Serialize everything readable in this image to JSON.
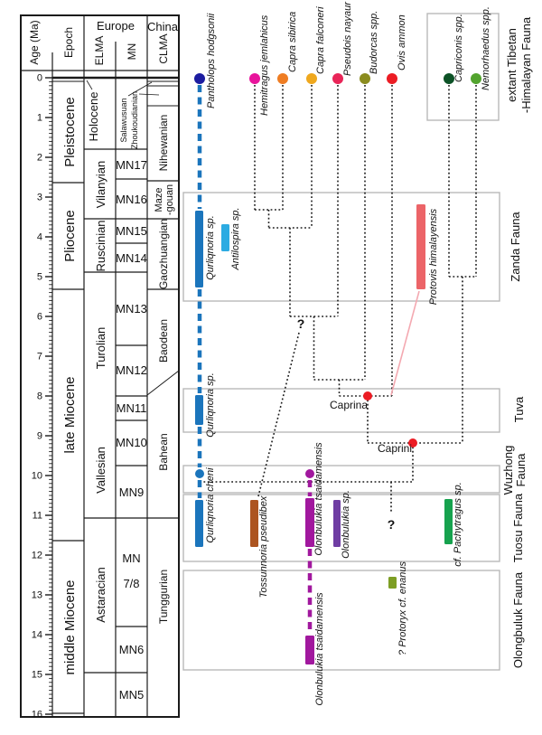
{
  "axis": {
    "label": "Age (Ma)",
    "tick_labels": [
      "0",
      "1",
      "2",
      "3",
      "4",
      "5",
      "6",
      "7",
      "8",
      "9",
      "10",
      "11",
      "12",
      "13",
      "14",
      "15",
      "16"
    ]
  },
  "header": {
    "epoch": "Epoch",
    "europe": "Europe",
    "china": "China",
    "elma": "ELMA",
    "mn": "MN",
    "clma": "CLMA"
  },
  "epochs": {
    "holocene": "Holocene",
    "pleistocene": "Pleistocene",
    "pliocene": "Pliocene",
    "late_miocene": "late Miocene",
    "middle_miocene": "middle Miocene"
  },
  "elma_stages": {
    "vilanyian": "Vilanyian",
    "ruscinian": "Ruscinian",
    "turolian": "Turolian",
    "vallesian": "Vallesian",
    "astaracian": "Astaracian"
  },
  "mn_zones": {
    "mn17": "MN17",
    "mn16": "MN16",
    "mn15": "MN15",
    "mn14": "MN14",
    "mn13": "MN13",
    "mn12": "MN12",
    "mn11": "MN11",
    "mn10": "MN10",
    "mn9": "MN9",
    "mn78_line1": "MN",
    "mn78_line2": "7/8",
    "mn6": "MN6",
    "mn5": "MN5"
  },
  "clma_stages": {
    "salawusuan": "Salawusuan",
    "zhoukoudianian": "Zhoukoudianian",
    "nihewanian": "Nihewanian",
    "mazegouan_line1": "Maze",
    "mazegouan_line2": "-gouan",
    "gaozhuangian": "Gaozhuangian",
    "baodean": "Baodean",
    "bahean": "Bahean",
    "tunggurian": "Tunggurian"
  },
  "extant_taxa": {
    "pantholops": {
      "label": "Pantholops hodgsonii",
      "color": "#1c1ca0"
    },
    "hemitragus": {
      "label": "Hemitragus jemlahicus",
      "color": "#e8149c"
    },
    "capra_sibirica": {
      "label": "Capra sibirica",
      "color": "#ef7d23"
    },
    "capra_falconeri": {
      "label": "Capra falconeri",
      "color": "#efa81e"
    },
    "pseudois": {
      "label": "Pseudois nayaur",
      "color": "#e92558"
    },
    "budorcas": {
      "label": "Budorcas spp.",
      "color": "#8b8c1f"
    },
    "ovis": {
      "label": "Ovis ammon",
      "color": "#ec1c24"
    },
    "capriconis": {
      "label": "Capriconis spp.",
      "color": "#0c5226"
    },
    "nemorhaedus": {
      "label": "Nemorhaedus spp.",
      "color": "#52a32e"
    }
  },
  "fossil_taxa": {
    "qurliqnoria_sp_zanda": {
      "label": "Qurliqnoria sp.",
      "color": "#1b75bc",
      "range_ma": [
        3.3,
        5.3
      ]
    },
    "antilospira": {
      "label": "Antilospira sp.",
      "color": "#2cabe2",
      "range_ma": [
        3.7,
        4.4
      ]
    },
    "protovis": {
      "label": "Protovis himalayensis",
      "color": "#ec6468",
      "range_ma": [
        3.2,
        5.3
      ]
    },
    "qurliqnoria_sp_tuva": {
      "label": "Qurliqnoria sp.",
      "color": "#1b75bc",
      "range_ma": [
        8.0,
        8.7
      ]
    },
    "qurliqnoria_cheni": {
      "label": "Qurliqnoria cheni",
      "color": "#1b75bc",
      "range_ma": [
        10.6,
        11.8
      ]
    },
    "tossunnoria": {
      "label": "Tossunnoria pseudibex",
      "color": "#ac5420",
      "range_ma": [
        10.6,
        11.8
      ]
    },
    "olonbulukia_tsaid_tuosu": {
      "label": "Olonbulukia tsaidamensis",
      "color": "#a1189e",
      "range_ma": [
        10.6,
        11.8
      ]
    },
    "olonbulukia_sp": {
      "label": "Olonbulukia sp.",
      "color": "#6f3da3",
      "range_ma": [
        10.6,
        11.8
      ]
    },
    "pachytragus": {
      "label": "cf. Pachytragus sp.",
      "color": "#16a24e",
      "range_ma": [
        10.6,
        11.7
      ]
    },
    "protoryx": {
      "label": "? Protoryx cf. enanus",
      "color": "#7d9e24",
      "range_ma": [
        12.5,
        12.8
      ]
    },
    "olonbulukia_tsaid_olong": {
      "label": "Olonbulukia tsaidamensis",
      "color": "#a1189e",
      "range_ma": [
        14.0,
        14.8
      ]
    }
  },
  "clade_labels": {
    "caprina": "Caprina",
    "caprini": "Caprini",
    "question1": "?",
    "question2": "?"
  },
  "fauna_labels": {
    "extant_line1": "extant Tibetan",
    "extant_line2": "-Himalayan Fauna",
    "zanda": "Zanda Fauna",
    "tuva": "Tuva",
    "wuzhong_line1": "Wuzhong",
    "wuzhong_line2": "Fauna",
    "tuosu": "Tuosu Fauna",
    "olongbuluk": "Olongbuluk Fauna"
  }
}
